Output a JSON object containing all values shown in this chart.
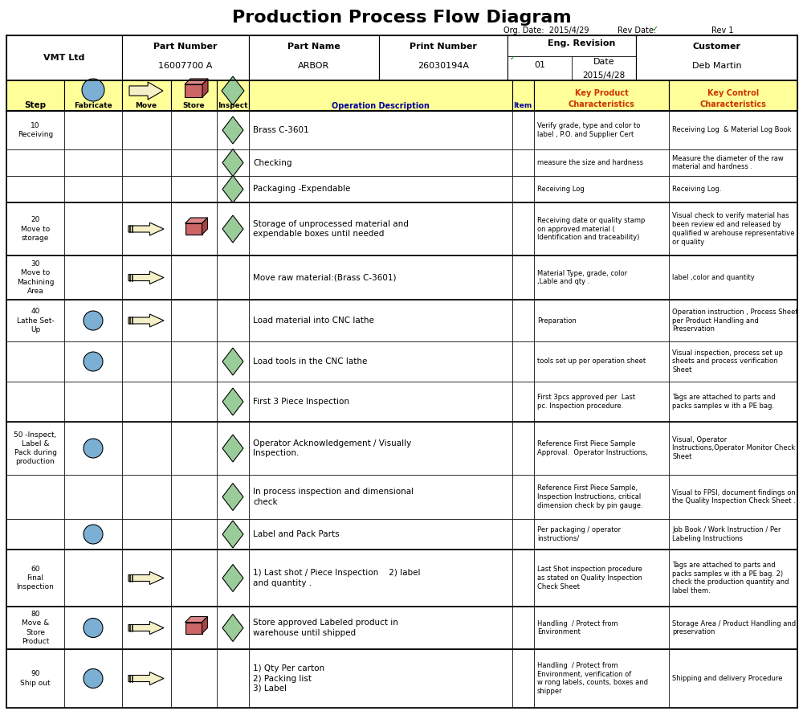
{
  "title": "Production Process Flow Diagram",
  "org_date": "Org. Date:  2015/4/29",
  "rev_date_label": "Rev Date:",
  "rev": "Rev 1",
  "rows": [
    {
      "step": "10\nReceiving",
      "fab": false,
      "move": false,
      "store": false,
      "inspect": true,
      "desc": "Brass C-3601",
      "item": "",
      "kpc": "Verify grade, type and color to\nlabel , P.O. and Supplier Cert",
      "kcc": "Receiving Log  & Material Log Book",
      "group_start": true
    },
    {
      "step": "",
      "fab": false,
      "move": false,
      "store": false,
      "inspect": true,
      "desc": "Checking",
      "item": "",
      "kpc": "measure the size and hardness",
      "kcc": "Measure the diameter of the raw\nmaterial and hardness .",
      "group_start": false
    },
    {
      "step": "",
      "fab": false,
      "move": false,
      "store": false,
      "inspect": true,
      "desc": "Packaging -Expendable",
      "item": "",
      "kpc": "Receiving Log",
      "kcc": "Receiving Log.",
      "group_start": false
    },
    {
      "step": "20\nMove to\nstorage",
      "fab": false,
      "move": true,
      "store": true,
      "inspect": true,
      "desc": "Storage of unprocessed material and\nexpendable boxes until needed",
      "item": "",
      "kpc": "Receiving date or quality stamp\non approved material (\nIdentification and traceability)",
      "kcc": "Visual check to verify material has\nbeen review ed and released by\nqualified w arehouse representative\nor quality",
      "group_start": true
    },
    {
      "step": "30\nMove to\nMachining\nArea",
      "fab": false,
      "move": true,
      "store": false,
      "inspect": false,
      "desc": "Move raw material:(Brass C-3601)",
      "item": "",
      "kpc": "Material Type, grade, color\n,Lable and qty .",
      "kcc": "label ,color and quantity",
      "group_start": true
    },
    {
      "step": "40\nLathe Set-\nUp",
      "fab": true,
      "move": true,
      "store": false,
      "inspect": false,
      "desc": "Load material into CNC lathe",
      "item": "",
      "kpc": "Preparation",
      "kcc": "Operation instruction , Process Sheet\nper Product Handling and\nPreservation",
      "group_start": true
    },
    {
      "step": "",
      "fab": true,
      "move": false,
      "store": false,
      "inspect": true,
      "desc": "Load tools in the CNC lathe",
      "item": "",
      "kpc": "tools set up per operation sheet",
      "kcc": "Visual inspection, process set up\nsheets and process verification\nSheet",
      "group_start": false
    },
    {
      "step": "",
      "fab": false,
      "move": false,
      "store": false,
      "inspect": true,
      "desc": "First 3 Piece Inspection",
      "item": "",
      "kpc": "First 3pcs approved per  Last\npc. Inspection procedure.",
      "kcc": "Tags are attached to parts and\npacks samples w ith a PE bag.",
      "group_start": false
    },
    {
      "step": "50 -Inspect,\nLabel &\nPack during\nproduction",
      "fab": true,
      "move": false,
      "store": false,
      "inspect": true,
      "desc": "Operator Acknowledgement / Visually\nInspection.",
      "item": "",
      "kpc": "Reference First Piece Sample\nApproval.  Operator Instructions,",
      "kcc": "Visual, Operator\nInstructions,Operator Monitor Check\nSheet",
      "group_start": true
    },
    {
      "step": "",
      "fab": false,
      "move": false,
      "store": false,
      "inspect": true,
      "desc": "In process inspection and dimensional\ncheck",
      "item": "",
      "kpc": "Reference First Piece Sample,\nInspection Instructions, critical\ndimension check by pin gauge.",
      "kcc": "Visual to FPSI, document findings on\nthe Quality Inspection Check Sheet .",
      "group_start": false
    },
    {
      "step": "",
      "fab": true,
      "move": false,
      "store": false,
      "inspect": true,
      "desc": "Label and Pack Parts",
      "item": "",
      "kpc": "Per packaging / operator\ninstructions/",
      "kcc": "Job Book / Work Instruction / Per\nLabeling Instructions",
      "group_start": false
    },
    {
      "step": "60\nFinal\nInspection",
      "fab": false,
      "move": true,
      "store": false,
      "inspect": true,
      "desc": "1) Last shot / Piece Inspection    2) label\nand quantity .",
      "item": "",
      "kpc": "Last Shot inspection procedure\nas stated on Quality Inspection\nCheck Sheet",
      "kcc": "Tags are attached to parts and\npacks samples w ith a PE bag. 2)\ncheck the production quantity and\nlabel them.",
      "group_start": true
    },
    {
      "step": "80\nMove &\nStore\nProduct",
      "fab": true,
      "move": true,
      "store": true,
      "inspect": true,
      "desc": "Store approved Labeled product in\nwarehouse until shipped",
      "item": "",
      "kpc": "Handling  / Protect from\nEnvironment",
      "kcc": "Storage Area / Product Handling and\npreservation",
      "group_start": true
    },
    {
      "step": "90\nShip out",
      "fab": true,
      "move": true,
      "store": false,
      "inspect": false,
      "desc": "1) Qty Per carton\n2) Packing list\n3) Label",
      "item": "",
      "kpc": "Handling  / Protect from\nEnvironment, verification of\nw rong labels, counts, boxes and\nshipper",
      "kcc": "Shipping and delivery Procedure",
      "group_start": true
    }
  ],
  "yellow_bg": "#FFFF99",
  "white_bg": "#FFFFFF",
  "fab_color": "#7BAFD4",
  "move_color": "#F5F0C8",
  "store_color": "#CC6666",
  "inspect_color": "#99CC99",
  "kpc_color": "#CC3300",
  "kcc_color": "#CC3300",
  "op_desc_color": "#000099"
}
